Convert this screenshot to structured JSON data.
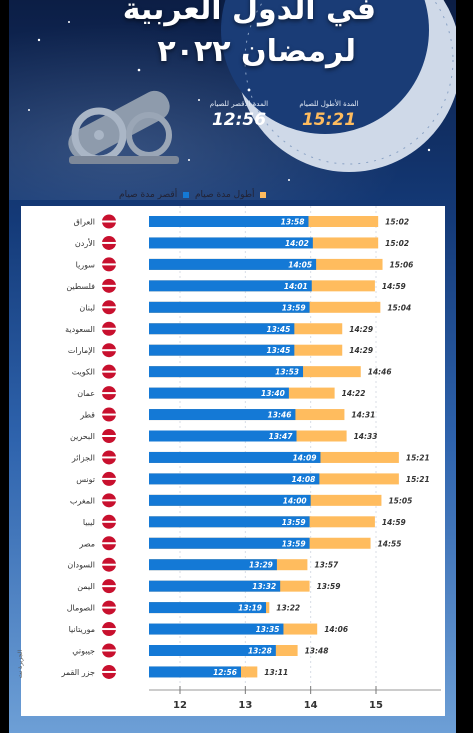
{
  "title": {
    "line1": "في الدول العربية",
    "line2": "لرمضان ٢٠٢٢"
  },
  "stats": {
    "longest": {
      "label": "المدة الأطول للصيام",
      "value": "15:21"
    },
    "shortest": {
      "label": "المدة الأقصر للصيام",
      "value": "12:56"
    }
  },
  "legend": {
    "longest": "أطول مدة صيام",
    "shortest": "أقصر مدة صيام"
  },
  "credit": "الجزيرة نت",
  "colors": {
    "short": "#1479d6",
    "long": "#ffbc5e",
    "title": "#ffffff",
    "frame_top": "#0c1e45",
    "frame_bottom": "#6d9fd6"
  },
  "chart_data": {
    "type": "bar",
    "orientation": "horizontal",
    "xlim": [
      11.5,
      15.5
    ],
    "xticks": [
      12,
      13,
      14,
      15
    ],
    "xtick_labels": [
      "12",
      "13",
      "14",
      "15"
    ],
    "categories": [
      "العراق",
      "الأردن",
      "سوريا",
      "فلسطين",
      "لبنان",
      "السعودية",
      "الإمارات",
      "الكويت",
      "عمان",
      "قطر",
      "البحرين",
      "الجزائر",
      "تونس",
      "المغرب",
      "ليبيا",
      "مصر",
      "السودان",
      "اليمن",
      "الصومال",
      "موريتانيا",
      "جيبوتي",
      "جزر القمر"
    ],
    "series": [
      {
        "name": "أقصر مدة صيام",
        "color": "#1479d6",
        "labels": [
          "13:58",
          "14:02",
          "14:05",
          "14:01",
          "13:59",
          "13:45",
          "13:45",
          "13:53",
          "13:40",
          "13:46",
          "13:47",
          "14:09",
          "14:08",
          "14:00",
          "13:59",
          "13:59",
          "13:29",
          "13:32",
          "13:19",
          "13:35",
          "13:28",
          "12:56"
        ]
      },
      {
        "name": "أطول مدة صيام",
        "color": "#ffbc5e",
        "labels": [
          "15:02",
          "15:02",
          "15:06",
          "14:59",
          "15:04",
          "14:29",
          "14:29",
          "14:46",
          "14:22",
          "14:31",
          "14:33",
          "15:21",
          "15:21",
          "15:05",
          "14:59",
          "14:55",
          "13:57",
          "13:59",
          "13:22",
          "14:06",
          "13:48",
          "13:11"
        ]
      }
    ]
  }
}
